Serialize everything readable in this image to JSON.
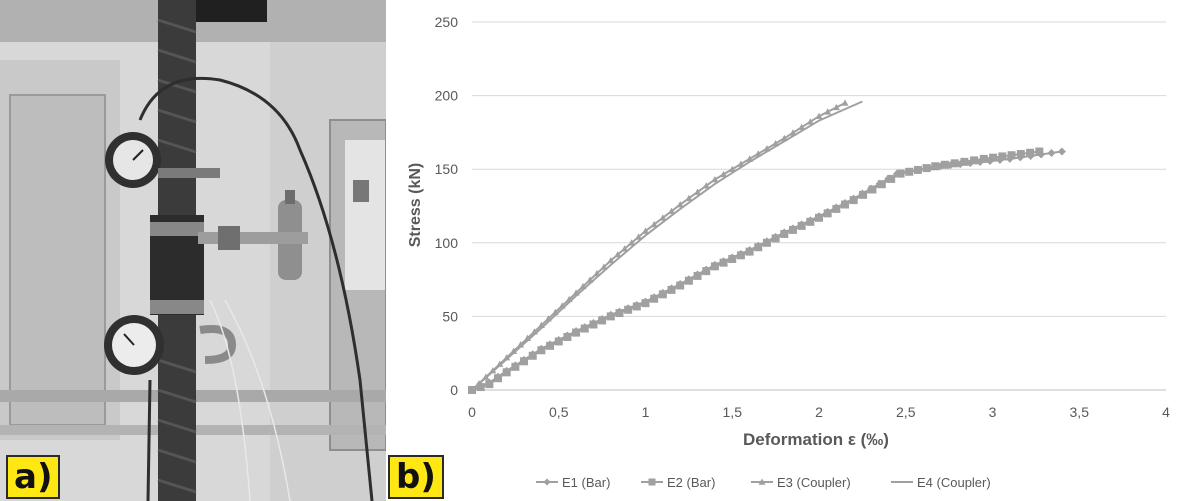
{
  "panels": [
    {
      "label": "a)",
      "content": "photograph"
    },
    {
      "label": "b)",
      "content": "chart"
    }
  ],
  "colors": {
    "panel_tag_bg": "#ffe714",
    "series_line": "#a0a0a0",
    "gridline": "#d9d9d9",
    "axis_text": "#595959"
  },
  "chart_data": {
    "type": "line",
    "title": "",
    "xlabel": "Deformation ε (‰)",
    "ylabel": "Stress (kN)",
    "xlim": [
      0,
      4
    ],
    "ylim": [
      0,
      250
    ],
    "x_ticks": [
      "0",
      "0,5",
      "1",
      "1,5",
      "2",
      "2,5",
      "3",
      "3,5",
      "4"
    ],
    "y_ticks": [
      "0",
      "50",
      "100",
      "150",
      "200",
      "250"
    ],
    "grid": "horizontal",
    "legend_position": "bottom",
    "series": [
      {
        "name": "E1 (Bar)",
        "marker": "diamond",
        "x": [
          0,
          0.1,
          0.2,
          0.4,
          0.6,
          0.8,
          1.0,
          1.2,
          1.4,
          1.6,
          1.8,
          2.0,
          2.2,
          2.45,
          2.7,
          3.1,
          3.4
        ],
        "y": [
          0,
          5,
          13,
          28,
          40,
          51,
          60,
          72,
          85,
          95,
          107,
          118,
          130,
          147,
          152,
          157,
          162
        ]
      },
      {
        "name": "E2 (Bar)",
        "marker": "square",
        "x": [
          0,
          0.1,
          0.2,
          0.4,
          0.6,
          0.8,
          1.0,
          1.2,
          1.4,
          1.6,
          1.8,
          2.0,
          2.2,
          2.47,
          2.67,
          2.95,
          3.27
        ],
        "y": [
          0,
          4,
          12,
          27,
          39,
          50,
          59,
          71,
          84,
          94,
          106,
          117,
          129,
          147,
          152,
          157,
          162
        ]
      },
      {
        "name": "E3 (Coupler)",
        "marker": "triangle",
        "x": [
          0,
          0.2,
          0.4,
          0.6,
          0.8,
          1.0,
          1.2,
          1.4,
          1.6,
          1.8,
          2.0,
          2.15
        ],
        "y": [
          0,
          22,
          44,
          66,
          88,
          108,
          126,
          143,
          157,
          171,
          186,
          195
        ]
      },
      {
        "name": "E4 (Coupler)",
        "marker": "none",
        "x": [
          0,
          0.2,
          0.4,
          0.6,
          0.8,
          1.0,
          1.2,
          1.4,
          1.6,
          1.8,
          2.0,
          2.25
        ],
        "y": [
          0,
          21,
          42,
          64,
          85,
          105,
          123,
          140,
          155,
          169,
          183,
          196
        ]
      }
    ]
  }
}
